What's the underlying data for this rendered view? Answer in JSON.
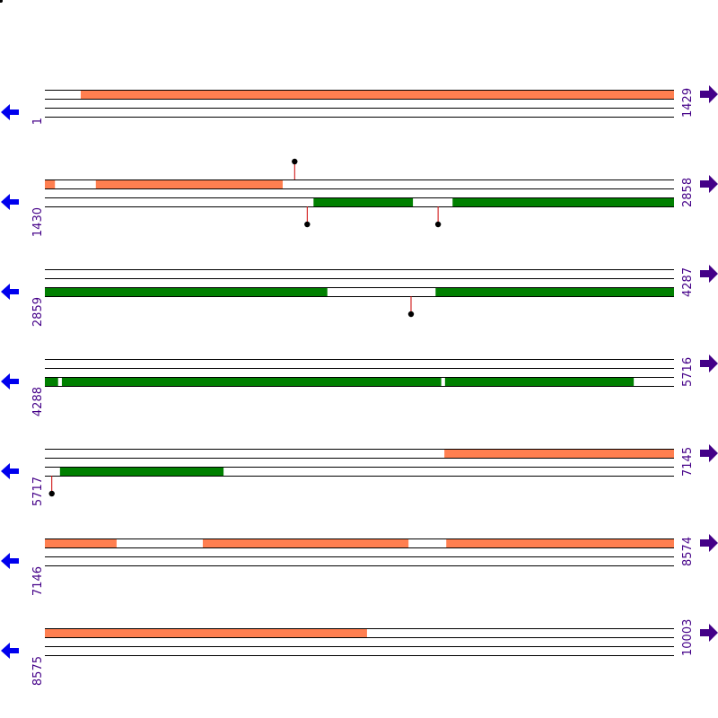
{
  "colors": {
    "forward_feature": "#FF7F50",
    "reverse_feature": "#008000",
    "strand_line": "#000000",
    "marker_stem": "#CC0000",
    "marker_head": "#000000",
    "left_arrow": "#0000EE",
    "right_arrow": "#440088",
    "coordinate_text": "#440088"
  },
  "icons": {
    "left": "left-arrow-icon",
    "right": "right-arrow-icon"
  },
  "rows": [
    {
      "start": 1,
      "end": 1429,
      "forward_blocks": [
        [
          0.057,
          1.0
        ]
      ],
      "reverse_blocks": [],
      "markers": []
    },
    {
      "start": 1430,
      "end": 2858,
      "forward_blocks": [
        [
          0.0,
          0.016
        ],
        [
          0.081,
          0.378
        ]
      ],
      "reverse_blocks": [
        [
          0.427,
          0.585
        ],
        [
          0.648,
          1.0
        ]
      ],
      "markers": [
        {
          "strand": "forward",
          "pos": 0.397
        },
        {
          "strand": "reverse",
          "pos": 0.417
        },
        {
          "strand": "reverse",
          "pos": 0.625
        }
      ]
    },
    {
      "start": 2859,
      "end": 4287,
      "forward_blocks": [],
      "reverse_blocks": [
        [
          0.0,
          0.449
        ],
        [
          0.621,
          1.0
        ]
      ],
      "markers": [
        {
          "strand": "reverse",
          "pos": 0.582
        }
      ]
    },
    {
      "start": 4288,
      "end": 5716,
      "forward_blocks": [],
      "reverse_blocks": [
        [
          0.0,
          0.021
        ],
        [
          0.027,
          0.63
        ],
        [
          0.636,
          0.936
        ]
      ],
      "markers": []
    },
    {
      "start": 5717,
      "end": 7145,
      "forward_blocks": [
        [
          0.635,
          1.0
        ]
      ],
      "reverse_blocks": [
        [
          0.024,
          0.284
        ]
      ],
      "markers": [
        {
          "strand": "reverse",
          "pos": 0.011
        }
      ]
    },
    {
      "start": 7146,
      "end": 8574,
      "forward_blocks": [
        [
          0.0,
          0.114
        ],
        [
          0.251,
          0.578
        ],
        [
          0.638,
          1.0
        ]
      ],
      "reverse_blocks": [],
      "markers": []
    },
    {
      "start": 8575,
      "end": 10003,
      "forward_blocks": [
        [
          0.0,
          0.512
        ]
      ],
      "reverse_blocks": [],
      "markers": []
    }
  ]
}
